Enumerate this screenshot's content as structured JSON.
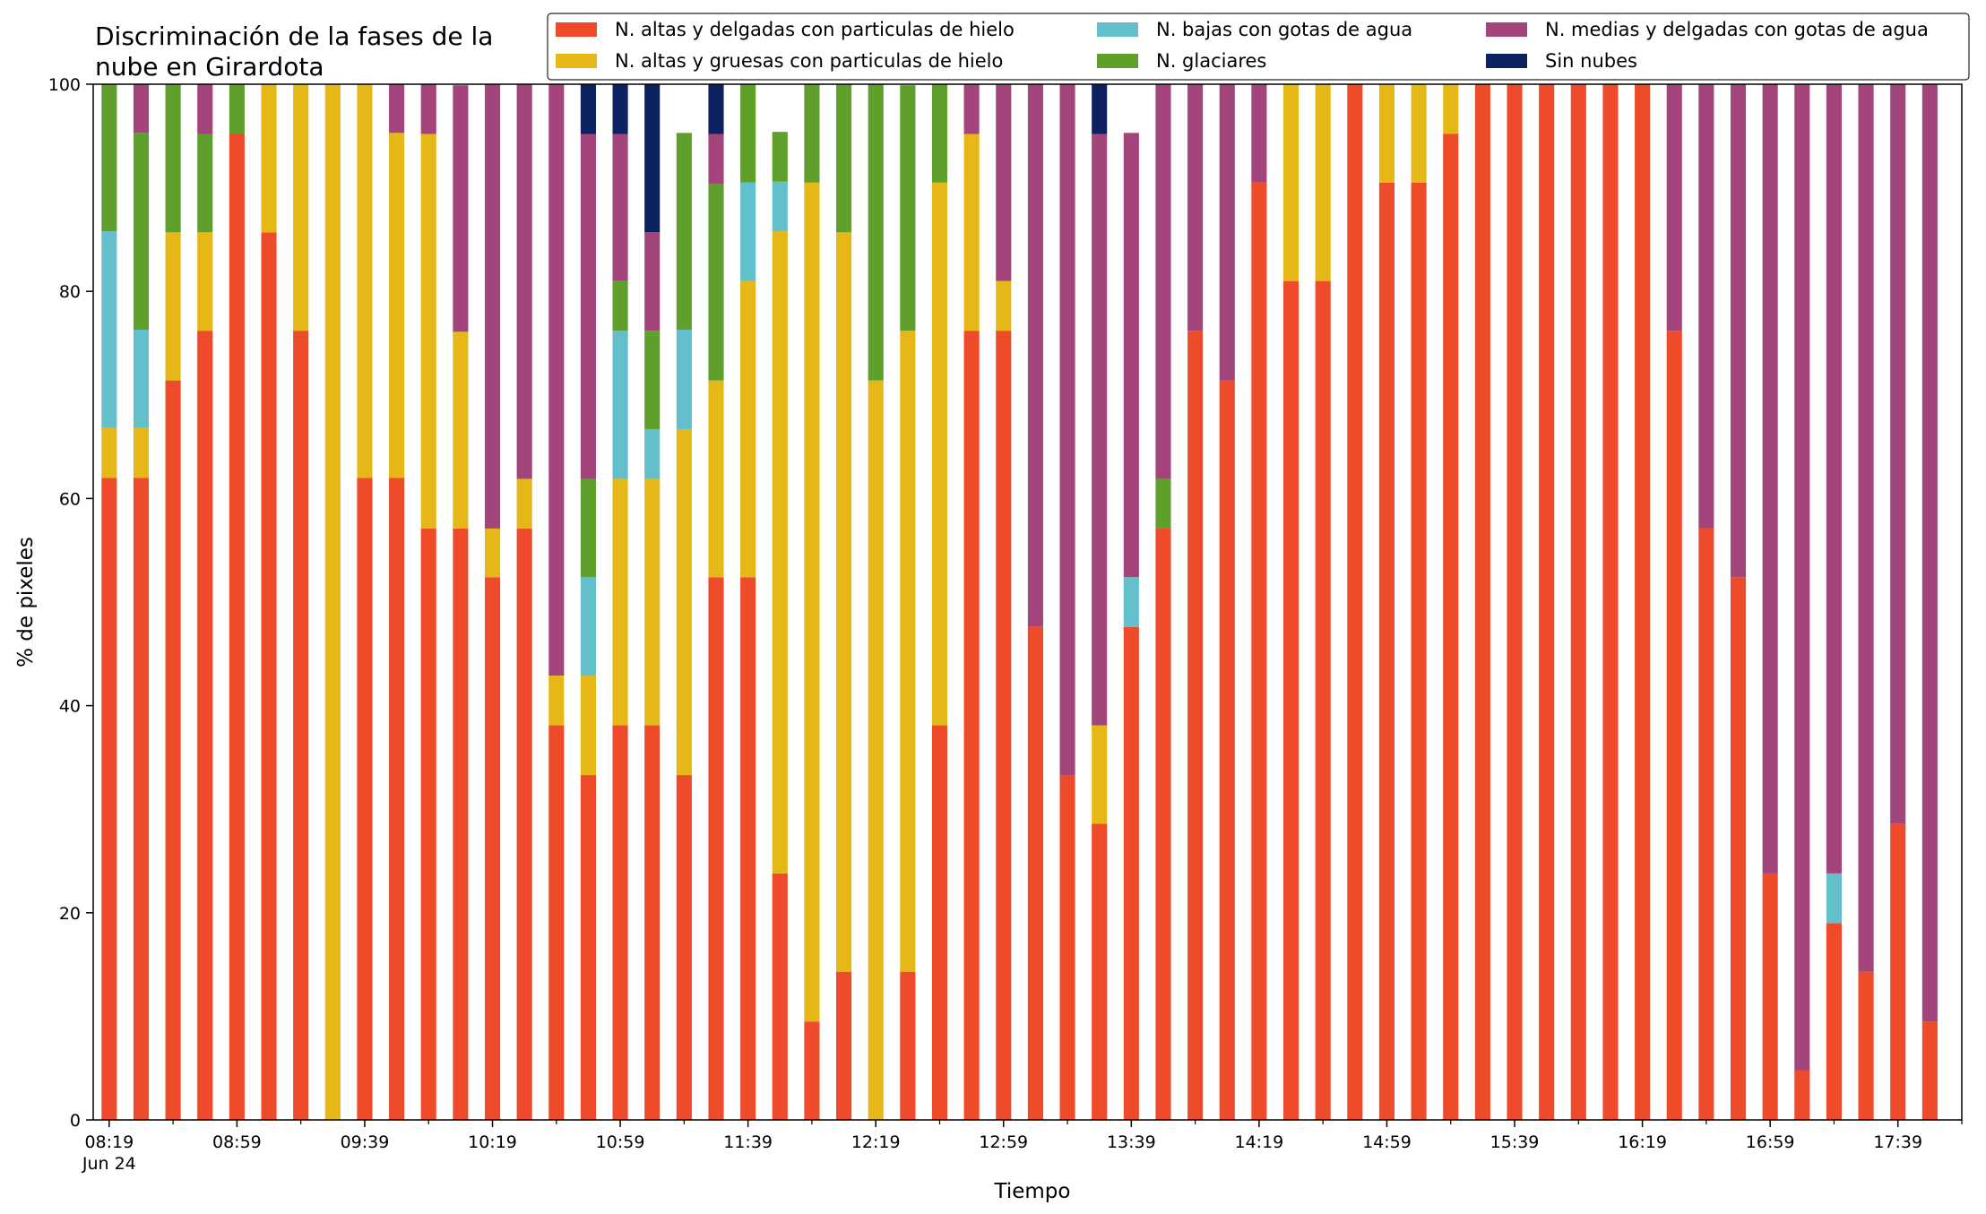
{
  "chart_data": {
    "type": "bar",
    "stacked": true,
    "title_lines": [
      "Discriminación de la fases de la",
      "nube en Girardota"
    ],
    "xlabel": "Tiempo",
    "ylabel": "% de pixeles",
    "ylim": [
      0,
      100
    ],
    "yticks": [
      0,
      20,
      40,
      60,
      80,
      100
    ],
    "xtick_labels": [
      "08:19",
      "08:59",
      "09:39",
      "10:19",
      "10:59",
      "11:39",
      "12:19",
      "12:59",
      "13:39",
      "14:19",
      "14:59",
      "15:39",
      "16:19",
      "16:59",
      "17:39"
    ],
    "xtick_sublabel": "Jun 24",
    "legend_position": "top-right",
    "grid": false,
    "categories": [
      "08:19",
      "08:29",
      "08:39",
      "08:49",
      "08:59",
      "09:09",
      "09:19",
      "09:29",
      "09:39",
      "09:49",
      "09:59",
      "10:09",
      "10:19",
      "10:29",
      "10:39",
      "10:49",
      "10:59",
      "11:09",
      "11:19",
      "11:29",
      "11:39",
      "11:49",
      "11:59",
      "12:09",
      "12:19",
      "12:29",
      "12:39",
      "12:49",
      "12:59",
      "13:09",
      "13:19",
      "13:29",
      "13:39",
      "13:49",
      "13:59",
      "14:09",
      "14:19",
      "14:29",
      "14:39",
      "14:49",
      "14:59",
      "15:09",
      "15:19",
      "15:29",
      "15:39",
      "15:49",
      "15:59",
      "16:09",
      "16:19",
      "16:29",
      "16:39",
      "16:49",
      "16:59",
      "17:09",
      "17:19",
      "17:29",
      "17:39",
      "17:49"
    ],
    "series": [
      {
        "name": "N. altas y delgadas con particulas de hielo",
        "color": "#EE4B2B",
        "values": [
          62,
          62,
          71.4,
          76.2,
          95.2,
          85.7,
          76.2,
          0,
          62,
          62,
          57.1,
          57.1,
          52.4,
          57.1,
          38.1,
          33.3,
          38.1,
          38.1,
          33.3,
          52.4,
          52.4,
          23.8,
          9.5,
          14.3,
          0,
          14.3,
          38.1,
          76.2,
          76.2,
          47.6,
          33.3,
          28.6,
          47.6,
          57.1,
          76.2,
          71.4,
          90.5,
          81,
          81,
          100,
          90.5,
          90.5,
          95.2,
          100,
          100,
          100,
          100,
          100,
          100,
          76.2,
          57.1,
          52.4,
          23.8,
          4.8,
          19,
          14.3,
          28.6,
          9.5
        ]
      },
      {
        "name": "N. altas y gruesas con particulas de hielo",
        "color": "#E6B817",
        "values": [
          4.8,
          4.8,
          14.3,
          9.5,
          0,
          14.3,
          23.8,
          100,
          38,
          33.3,
          38.1,
          19,
          4.7,
          4.8,
          4.8,
          9.6,
          23.8,
          23.8,
          33.4,
          19,
          28.6,
          62,
          81,
          71.4,
          71.4,
          61.9,
          52.4,
          19,
          4.8,
          0,
          0,
          9.5,
          0,
          0,
          0,
          0,
          0,
          19,
          19,
          0,
          9.5,
          9.5,
          4.8,
          0,
          0,
          0,
          0,
          0,
          0,
          0,
          0,
          0,
          0,
          0,
          0,
          0,
          0,
          0
        ]
      },
      {
        "name": "N. bajas con gotas de agua",
        "color": "#62BFCB",
        "values": [
          19,
          9.5,
          0,
          0,
          0,
          0,
          0,
          0,
          0,
          0,
          0,
          0,
          0,
          0,
          0,
          9.5,
          14.3,
          4.8,
          9.6,
          0,
          9.5,
          4.8,
          0,
          0,
          0,
          0,
          0,
          0,
          0,
          0,
          0,
          0,
          4.8,
          0,
          0,
          0,
          0,
          0,
          0,
          0,
          0,
          0,
          0,
          0,
          0,
          0,
          0,
          0,
          0,
          0,
          0,
          0,
          0,
          0,
          4.8,
          0,
          0,
          0
        ]
      },
      {
        "name": "N. glaciares",
        "color": "#5FA02C",
        "values": [
          14.2,
          19,
          14.3,
          9.5,
          4.8,
          0,
          0,
          0,
          0,
          0,
          0,
          0,
          0,
          0,
          0,
          9.5,
          4.8,
          9.5,
          19,
          19,
          9.5,
          4.8,
          9.5,
          14.3,
          28.6,
          23.7,
          14.3,
          0,
          0,
          0,
          0,
          0,
          0,
          4.8,
          0,
          0,
          0,
          0,
          0,
          0,
          0,
          0,
          0,
          0,
          0,
          0,
          0,
          0,
          0,
          0,
          0,
          0,
          0,
          0,
          0,
          0,
          0,
          0
        ]
      },
      {
        "name": "N. medias y delgadas con gotas de agua",
        "color": "#A3447B",
        "values": [
          0,
          4.7,
          0,
          4.8,
          0,
          0,
          0,
          0,
          0,
          4.7,
          4.8,
          23.8,
          42.9,
          38.1,
          57.1,
          33.3,
          14.2,
          9.5,
          0,
          4.8,
          0,
          0,
          0,
          0,
          0,
          0,
          0,
          4.8,
          19,
          52.4,
          66.7,
          57.1,
          42.9,
          38.1,
          23.8,
          28.6,
          9.5,
          0,
          0,
          0,
          0,
          0,
          0,
          0,
          0,
          0,
          0,
          0,
          0,
          23.8,
          42.9,
          47.6,
          76.2,
          95.2,
          76.2,
          85.7,
          71.4,
          90.5
        ]
      },
      {
        "name": "Sin nubes",
        "color": "#0C2260",
        "values": [
          0,
          0,
          0,
          0,
          0,
          0,
          0,
          0,
          0,
          0,
          0,
          0,
          0,
          0,
          0,
          4.8,
          4.8,
          14.3,
          0,
          4.8,
          0,
          0,
          0,
          0,
          0,
          0,
          0,
          0,
          0,
          0,
          0,
          4.8,
          0,
          0,
          0,
          0,
          0,
          0,
          0,
          0,
          0,
          0,
          0,
          0,
          0,
          0,
          0,
          0,
          0,
          0,
          0,
          0,
          0,
          0,
          0,
          0,
          0,
          0
        ]
      }
    ],
    "legend_order": [
      0,
      1,
      2,
      3,
      4,
      5
    ]
  }
}
